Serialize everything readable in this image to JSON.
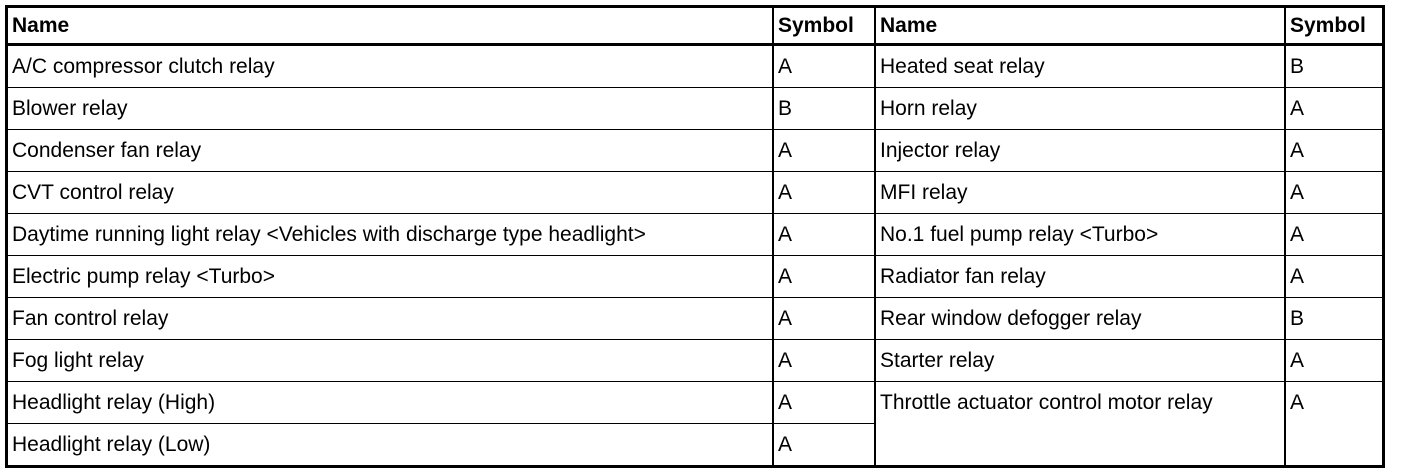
{
  "headers": {
    "name_left": "Name",
    "symbol_left": "Symbol",
    "name_right": "Name",
    "symbol_right": "Symbol"
  },
  "left": [
    {
      "name": "A/C compressor clutch relay",
      "symbol": "A"
    },
    {
      "name": "Blower relay",
      "symbol": "B"
    },
    {
      "name": "Condenser fan relay",
      "symbol": "A"
    },
    {
      "name": "CVT control relay",
      "symbol": "A"
    },
    {
      "name": "Daytime running light relay <Vehicles with discharge type headlight>",
      "symbol": "A"
    },
    {
      "name": "Electric pump relay <Turbo>",
      "symbol": "A"
    },
    {
      "name": "Fan control relay",
      "symbol": "A"
    },
    {
      "name": "Fog light relay",
      "symbol": "A"
    },
    {
      "name": "Headlight relay (High)",
      "symbol": "A"
    },
    {
      "name": "Headlight relay (Low)",
      "symbol": "A"
    }
  ],
  "right": [
    {
      "name": "Heated seat relay",
      "symbol": "B"
    },
    {
      "name": "Horn relay",
      "symbol": "A"
    },
    {
      "name": "Injector relay",
      "symbol": "A"
    },
    {
      "name": "MFI relay",
      "symbol": "A"
    },
    {
      "name": "No.1 fuel pump relay <Turbo>",
      "symbol": "A"
    },
    {
      "name": "Radiator fan relay",
      "symbol": "A"
    },
    {
      "name": "Rear window defogger relay",
      "symbol": "B"
    },
    {
      "name": "Starter relay",
      "symbol": "A"
    },
    {
      "name": "Throttle actuator control motor relay",
      "symbol": "A"
    }
  ]
}
